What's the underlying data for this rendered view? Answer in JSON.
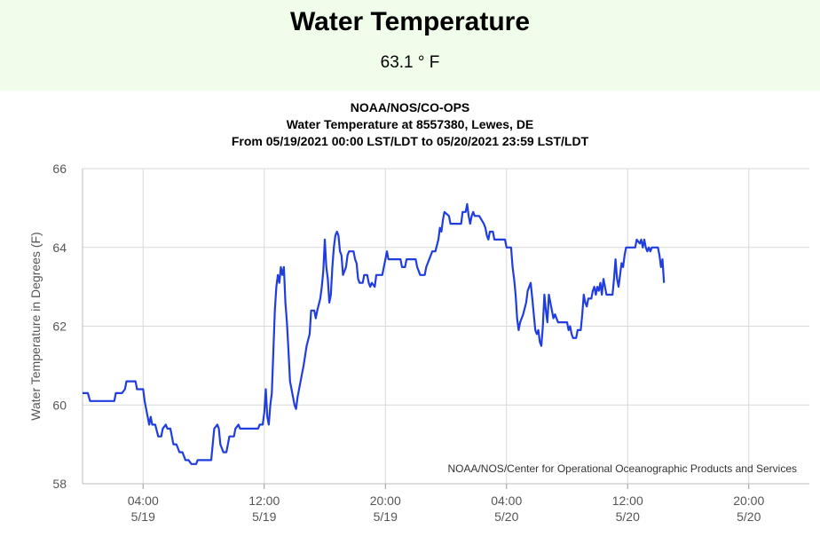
{
  "header": {
    "title": "Water Temperature",
    "reading": "63.1 ° F"
  },
  "chart_data": {
    "type": "line",
    "title_lines": [
      "NOAA/NOS/CO-OPS",
      "Water Temperature at 8557380, Lewes, DE",
      "From 05/19/2021 00:00 LST/LDT to 05/20/2021 23:59 LST/LDT"
    ],
    "ylabel": "Water Temperature in Degrees (F)",
    "ylim": [
      58,
      66
    ],
    "yticks": [
      58,
      60,
      62,
      64,
      66
    ],
    "xlim": [
      0,
      48
    ],
    "xticks": [
      {
        "x": 4,
        "time": "04:00",
        "date": "5/19"
      },
      {
        "x": 12,
        "time": "12:00",
        "date": "5/19"
      },
      {
        "x": 20,
        "time": "20:00",
        "date": "5/19"
      },
      {
        "x": 28,
        "time": "04:00",
        "date": "5/20"
      },
      {
        "x": 36,
        "time": "12:00",
        "date": "5/20"
      },
      {
        "x": 44,
        "time": "20:00",
        "date": "5/20"
      }
    ],
    "grid": true,
    "credit": "NOAA/NOS/Center for Operational Oceanographic Products and Services",
    "series": [
      {
        "color": "#1f3de0",
        "points": [
          [
            0.0,
            60.3
          ],
          [
            0.35,
            60.3
          ],
          [
            0.5,
            60.1
          ],
          [
            2.1,
            60.1
          ],
          [
            2.2,
            60.3
          ],
          [
            2.6,
            60.3
          ],
          [
            2.8,
            60.4
          ],
          [
            2.9,
            60.6
          ],
          [
            3.5,
            60.6
          ],
          [
            3.6,
            60.4
          ],
          [
            4.0,
            60.4
          ],
          [
            4.1,
            60.1
          ],
          [
            4.3,
            59.7
          ],
          [
            4.4,
            59.5
          ],
          [
            4.5,
            59.7
          ],
          [
            4.6,
            59.5
          ],
          [
            4.8,
            59.5
          ],
          [
            5.0,
            59.2
          ],
          [
            5.2,
            59.2
          ],
          [
            5.3,
            59.4
          ],
          [
            5.5,
            59.5
          ],
          [
            5.6,
            59.4
          ],
          [
            5.8,
            59.4
          ],
          [
            5.9,
            59.2
          ],
          [
            6.0,
            59.0
          ],
          [
            6.2,
            59.0
          ],
          [
            6.4,
            58.8
          ],
          [
            6.6,
            58.8
          ],
          [
            6.8,
            58.6
          ],
          [
            7.0,
            58.6
          ],
          [
            7.2,
            58.5
          ],
          [
            7.5,
            58.5
          ],
          [
            7.6,
            58.6
          ],
          [
            8.5,
            58.6
          ],
          [
            8.7,
            59.4
          ],
          [
            8.9,
            59.5
          ],
          [
            9.0,
            59.4
          ],
          [
            9.1,
            59.0
          ],
          [
            9.3,
            58.8
          ],
          [
            9.5,
            58.8
          ],
          [
            9.7,
            59.2
          ],
          [
            10.0,
            59.2
          ],
          [
            10.1,
            59.4
          ],
          [
            10.3,
            59.5
          ],
          [
            10.4,
            59.4
          ],
          [
            11.6,
            59.4
          ],
          [
            11.7,
            59.5
          ],
          [
            11.9,
            59.5
          ],
          [
            12.0,
            59.8
          ],
          [
            12.1,
            60.4
          ],
          [
            12.2,
            59.7
          ],
          [
            12.3,
            59.5
          ],
          [
            12.4,
            60.0
          ],
          [
            12.5,
            60.3
          ],
          [
            12.7,
            62.4
          ],
          [
            12.8,
            63.0
          ],
          [
            12.9,
            63.3
          ],
          [
            13.0,
            63.1
          ],
          [
            13.1,
            63.5
          ],
          [
            13.2,
            63.3
          ],
          [
            13.3,
            63.5
          ],
          [
            13.4,
            62.6
          ],
          [
            13.5,
            62.1
          ],
          [
            13.6,
            61.4
          ],
          [
            13.7,
            60.6
          ],
          [
            13.8,
            60.4
          ],
          [
            13.9,
            60.2
          ],
          [
            14.0,
            60.0
          ],
          [
            14.1,
            59.9
          ],
          [
            14.2,
            60.2
          ],
          [
            14.4,
            60.6
          ],
          [
            14.6,
            61.0
          ],
          [
            14.8,
            61.5
          ],
          [
            15.0,
            61.8
          ],
          [
            15.1,
            62.4
          ],
          [
            15.3,
            62.4
          ],
          [
            15.4,
            62.2
          ],
          [
            15.5,
            62.4
          ],
          [
            15.7,
            62.7
          ],
          [
            15.8,
            63.0
          ],
          [
            15.9,
            63.4
          ],
          [
            16.0,
            64.2
          ],
          [
            16.1,
            63.5
          ],
          [
            16.2,
            63.2
          ],
          [
            16.3,
            62.6
          ],
          [
            16.4,
            62.8
          ],
          [
            16.5,
            63.5
          ],
          [
            16.6,
            64.0
          ],
          [
            16.7,
            64.3
          ],
          [
            16.8,
            64.4
          ],
          [
            16.9,
            64.3
          ],
          [
            17.0,
            63.9
          ],
          [
            17.1,
            63.8
          ],
          [
            17.2,
            63.3
          ],
          [
            17.4,
            63.5
          ],
          [
            17.5,
            63.8
          ],
          [
            17.6,
            63.9
          ],
          [
            17.9,
            63.9
          ],
          [
            18.0,
            63.7
          ],
          [
            18.1,
            63.6
          ],
          [
            18.2,
            63.2
          ],
          [
            18.3,
            63.1
          ],
          [
            18.5,
            63.1
          ],
          [
            18.6,
            63.3
          ],
          [
            18.8,
            63.3
          ],
          [
            18.9,
            63.1
          ],
          [
            19.0,
            63.0
          ],
          [
            19.1,
            63.1
          ],
          [
            19.3,
            63.0
          ],
          [
            19.4,
            63.3
          ],
          [
            19.8,
            63.3
          ],
          [
            19.9,
            63.5
          ],
          [
            20.0,
            63.7
          ],
          [
            20.1,
            63.9
          ],
          [
            20.2,
            63.7
          ],
          [
            21.0,
            63.7
          ],
          [
            21.1,
            63.5
          ],
          [
            21.3,
            63.5
          ],
          [
            21.4,
            63.7
          ],
          [
            22.0,
            63.7
          ],
          [
            22.1,
            63.5
          ],
          [
            22.3,
            63.3
          ],
          [
            22.6,
            63.3
          ],
          [
            22.7,
            63.5
          ],
          [
            22.9,
            63.7
          ],
          [
            23.1,
            63.9
          ],
          [
            23.3,
            63.9
          ],
          [
            23.5,
            64.2
          ],
          [
            23.6,
            64.5
          ],
          [
            23.7,
            64.4
          ],
          [
            23.8,
            64.7
          ],
          [
            23.9,
            64.9
          ],
          [
            24.2,
            64.8
          ],
          [
            24.3,
            64.6
          ],
          [
            25.0,
            64.6
          ],
          [
            25.1,
            64.9
          ],
          [
            25.3,
            64.9
          ],
          [
            25.4,
            65.1
          ],
          [
            25.5,
            64.8
          ],
          [
            25.6,
            64.6
          ],
          [
            25.7,
            64.8
          ],
          [
            25.8,
            64.9
          ],
          [
            25.9,
            64.8
          ],
          [
            26.2,
            64.8
          ],
          [
            26.5,
            64.6
          ],
          [
            26.6,
            64.5
          ],
          [
            26.7,
            64.3
          ],
          [
            26.8,
            64.2
          ],
          [
            26.9,
            64.4
          ],
          [
            27.1,
            64.4
          ],
          [
            27.2,
            64.2
          ],
          [
            27.9,
            64.2
          ],
          [
            28.0,
            64.0
          ],
          [
            28.3,
            64.0
          ],
          [
            28.4,
            63.5
          ],
          [
            28.5,
            63.2
          ],
          [
            28.6,
            62.8
          ],
          [
            28.7,
            62.2
          ],
          [
            28.8,
            61.9
          ],
          [
            28.9,
            62.1
          ],
          [
            29.1,
            62.3
          ],
          [
            29.3,
            62.6
          ],
          [
            29.4,
            62.9
          ],
          [
            29.6,
            63.1
          ],
          [
            29.7,
            62.7
          ],
          [
            29.8,
            62.3
          ],
          [
            29.9,
            61.9
          ],
          [
            30.0,
            61.8
          ],
          [
            30.1,
            61.9
          ],
          [
            30.2,
            61.6
          ],
          [
            30.3,
            61.5
          ],
          [
            30.4,
            62.0
          ],
          [
            30.5,
            62.8
          ],
          [
            30.6,
            62.4
          ],
          [
            30.7,
            62.1
          ],
          [
            30.8,
            62.8
          ],
          [
            30.9,
            62.6
          ],
          [
            31.0,
            62.4
          ],
          [
            31.1,
            62.2
          ],
          [
            31.2,
            62.3
          ],
          [
            31.4,
            62.1
          ],
          [
            32.0,
            62.1
          ],
          [
            32.1,
            61.9
          ],
          [
            32.2,
            62.0
          ],
          [
            32.3,
            61.8
          ],
          [
            32.4,
            61.7
          ],
          [
            32.6,
            61.7
          ],
          [
            32.7,
            61.9
          ],
          [
            32.9,
            61.9
          ],
          [
            33.0,
            62.3
          ],
          [
            33.1,
            62.8
          ],
          [
            33.2,
            62.6
          ],
          [
            33.3,
            62.5
          ],
          [
            33.4,
            62.7
          ],
          [
            33.6,
            62.7
          ],
          [
            33.7,
            62.9
          ],
          [
            33.8,
            63.0
          ],
          [
            33.9,
            62.8
          ],
          [
            34.0,
            63.0
          ],
          [
            34.1,
            62.9
          ],
          [
            34.2,
            63.1
          ],
          [
            34.3,
            62.8
          ],
          [
            34.4,
            63.2
          ],
          [
            34.5,
            63.0
          ],
          [
            34.6,
            62.8
          ],
          [
            35.0,
            62.8
          ],
          [
            35.1,
            63.2
          ],
          [
            35.2,
            63.7
          ],
          [
            35.3,
            63.2
          ],
          [
            35.4,
            63.0
          ],
          [
            35.5,
            63.3
          ],
          [
            35.6,
            63.6
          ],
          [
            35.7,
            63.5
          ],
          [
            35.8,
            63.8
          ],
          [
            35.9,
            64.0
          ],
          [
            36.5,
            64.0
          ],
          [
            36.6,
            64.2
          ],
          [
            36.8,
            64.1
          ],
          [
            36.9,
            64.2
          ],
          [
            37.0,
            64.0
          ],
          [
            37.1,
            64.2
          ],
          [
            37.2,
            64.0
          ],
          [
            37.3,
            63.9
          ],
          [
            37.4,
            64.0
          ],
          [
            37.5,
            63.9
          ],
          [
            37.6,
            64.0
          ],
          [
            38.0,
            64.0
          ],
          [
            38.1,
            63.8
          ],
          [
            38.2,
            63.5
          ],
          [
            38.3,
            63.7
          ],
          [
            38.4,
            63.1
          ]
        ]
      }
    ]
  }
}
